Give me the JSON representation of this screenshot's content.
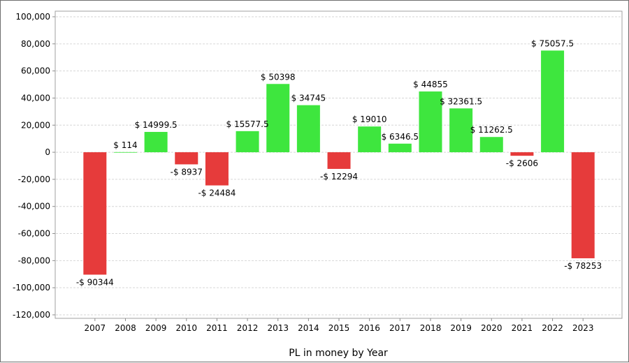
{
  "chart_data": {
    "type": "bar",
    "xlabel": "PL in money by Year",
    "ylabel": "",
    "categories": [
      "2007",
      "2008",
      "2009",
      "2010",
      "2011",
      "2012",
      "2013",
      "2014",
      "2015",
      "2016",
      "2017",
      "2018",
      "2019",
      "2020",
      "2021",
      "2022",
      "2023"
    ],
    "values": [
      -90344,
      114,
      14999.5,
      -8937,
      -24484,
      15577.5,
      50398,
      34745,
      -12294,
      19010,
      6346.5,
      44855,
      32361.5,
      11262.5,
      -2606,
      75057.5,
      -78253
    ],
    "data_labels": [
      "-$ 90344",
      "$ 114",
      "$ 14999.5",
      "-$ 8937",
      "-$ 24484",
      "$ 15577.5",
      "$ 50398",
      "$ 34745",
      "-$ 12294",
      "$ 19010",
      "$ 6346.5",
      "$ 44855",
      "$ 32361.5",
      "$ 11262.5",
      "-$ 2606",
      "$ 75057.5",
      "-$ 78253"
    ],
    "ylim": [
      -120000,
      100000
    ],
    "yticks": [
      100000,
      80000,
      60000,
      40000,
      20000,
      0,
      -20000,
      -40000,
      -60000,
      -80000,
      -100000,
      -120000
    ],
    "ytick_labels": [
      "100,000",
      "80,000",
      "60,000",
      "40,000",
      "20,000",
      "0",
      "-20,000",
      "-40,000",
      "-60,000",
      "-80,000",
      "-100,000",
      "-120,000"
    ],
    "grid": true,
    "colors": {
      "positive": "#3ee63e",
      "negative": "#e63b3b",
      "grid": "#d6d6d6",
      "axis": "#8c8c8c"
    }
  }
}
